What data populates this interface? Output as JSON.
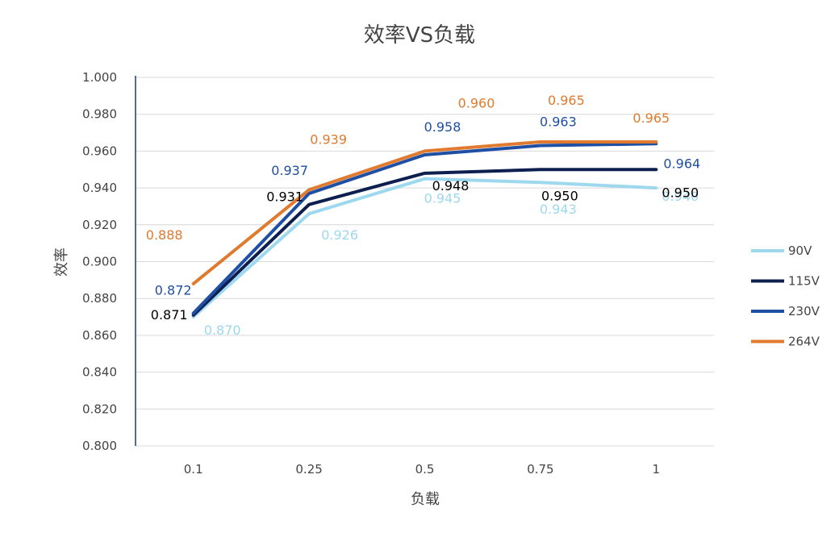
{
  "chart_data": {
    "type": "line",
    "title": "效率VS负载",
    "xlabel": "负载",
    "ylabel": "效率",
    "categories": [
      "0.1",
      "0.25",
      "0.5",
      "0.75",
      "1"
    ],
    "ylim": [
      0.8,
      1.0
    ],
    "yticks": [
      "0.800",
      "0.820",
      "0.840",
      "0.860",
      "0.880",
      "0.900",
      "0.920",
      "0.940",
      "0.960",
      "0.980",
      "1.000"
    ],
    "grid": "horizontal",
    "legend_position": "right",
    "series": [
      {
        "name": "90V",
        "color": "#9ED8EE",
        "values": [
          0.87,
          0.926,
          0.945,
          0.943,
          0.94
        ],
        "labels": [
          "0.870",
          "0.926",
          "0.945",
          "0.943",
          "0.940"
        ]
      },
      {
        "name": "115V",
        "color": "#0D1F4F",
        "values": [
          0.871,
          0.931,
          0.948,
          0.95,
          0.95
        ],
        "labels": [
          "0.871",
          "0.931",
          "0.948",
          "0.950",
          "0.950"
        ]
      },
      {
        "name": "230V",
        "color": "#1F4FA3",
        "values": [
          0.872,
          0.937,
          0.958,
          0.963,
          0.964
        ],
        "labels": [
          "0.872",
          "0.937",
          "0.958",
          "0.963",
          "0.964"
        ]
      },
      {
        "name": "264V",
        "color": "#E07A2E",
        "values": [
          0.888,
          0.939,
          0.96,
          0.965,
          0.965
        ],
        "labels": [
          "0.888",
          "0.939",
          "0.960",
          "0.965",
          "0.965"
        ]
      }
    ]
  }
}
